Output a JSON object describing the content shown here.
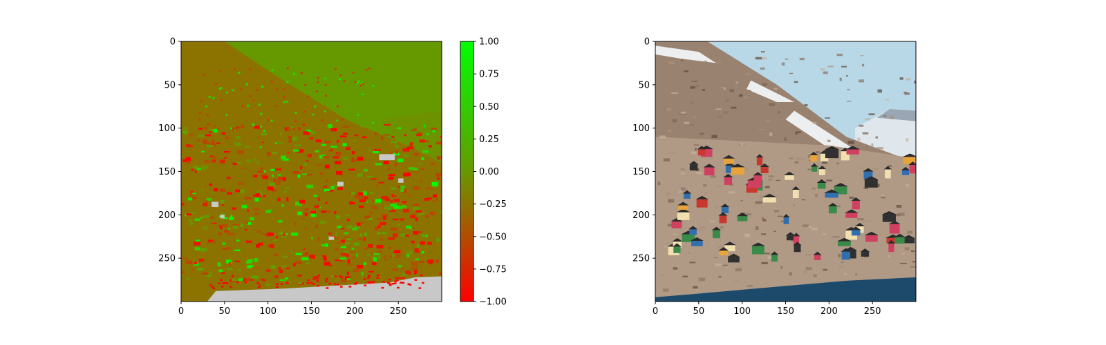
{
  "chart_data": [
    {
      "type": "heatmap",
      "title": "",
      "xlabel": "",
      "ylabel": "",
      "image_size": [
        300,
        300
      ],
      "x_range": [
        0,
        300
      ],
      "y_range": [
        0,
        300
      ],
      "y_inverted": true,
      "x_ticks": [
        0,
        50,
        100,
        150,
        200,
        250
      ],
      "y_ticks": [
        0,
        50,
        100,
        150,
        200,
        250
      ],
      "grid": false,
      "colorbar": {
        "range": [
          -1.0,
          1.0
        ],
        "ticks": [
          "1.00",
          "0.75",
          "0.50",
          "0.25",
          "0.00",
          "−0.25",
          "−0.50",
          "−0.75",
          "−1.00"
        ],
        "tick_values": [
          1.0,
          0.75,
          0.5,
          0.25,
          0.0,
          -0.25,
          -0.5,
          -0.75,
          -1.0
        ],
        "colormap": [
          "#ff0000",
          "#669900",
          "#00ff00"
        ],
        "position": "right"
      },
      "masked_color": "#c8c8c8",
      "description_regions": [
        {
          "name": "sky",
          "value": 0.0
        },
        {
          "name": "mountain-slope",
          "value": -0.25
        },
        {
          "name": "village",
          "value": -0.4
        },
        {
          "name": "water-masked",
          "value": null
        }
      ]
    },
    {
      "type": "image",
      "title": "",
      "xlabel": "",
      "ylabel": "",
      "image_size": [
        300,
        300
      ],
      "x_range": [
        0,
        300
      ],
      "y_range": [
        0,
        300
      ],
      "y_inverted": true,
      "x_ticks": [
        0,
        50,
        100,
        150,
        200,
        250
      ],
      "y_ticks": [
        0,
        50,
        100,
        150,
        200,
        250
      ],
      "grid": false,
      "palette": {
        "sky": "#b8d8e8",
        "mountain": "#9a8270",
        "snow": "#eceef0",
        "rock": "#b09a86",
        "water": "#1d4a6a",
        "house_colors": [
          "#c8382e",
          "#e8a43a",
          "#2f6fb0",
          "#3a8a4a",
          "#d04060",
          "#f0e0b0",
          "#303030"
        ]
      }
    }
  ]
}
